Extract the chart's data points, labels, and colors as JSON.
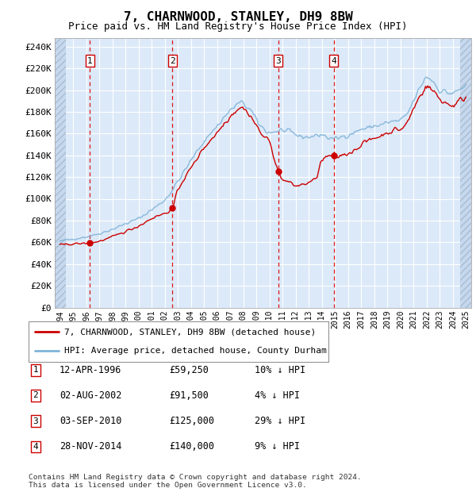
{
  "title": "7, CHARNWOOD, STANLEY, DH9 8BW",
  "subtitle": "Price paid vs. HM Land Registry's House Price Index (HPI)",
  "ylabel_ticks": [
    "£0",
    "£20K",
    "£40K",
    "£60K",
    "£80K",
    "£100K",
    "£120K",
    "£140K",
    "£160K",
    "£180K",
    "£200K",
    "£220K",
    "£240K"
  ],
  "ytick_values": [
    0,
    20000,
    40000,
    60000,
    80000,
    100000,
    120000,
    140000,
    160000,
    180000,
    200000,
    220000,
    240000
  ],
  "ylim": [
    0,
    248000
  ],
  "xlim_start": 1993.6,
  "xlim_end": 2025.4,
  "background_color": "#ffffff",
  "plot_bg_color": "#dce9f8",
  "grid_color": "#ffffff",
  "sale_dates": [
    1996.28,
    2002.58,
    2010.67,
    2014.91
  ],
  "sale_prices": [
    59250,
    91500,
    125000,
    140000
  ],
  "sale_labels": [
    "1",
    "2",
    "3",
    "4"
  ],
  "red_line_color": "#cc0000",
  "blue_line_color": "#7fb3d9",
  "marker_color": "#cc0000",
  "dashed_line_color": "#dd0000",
  "legend_entry1": "7, CHARNWOOD, STANLEY, DH9 8BW (detached house)",
  "legend_entry2": "HPI: Average price, detached house, County Durham",
  "table_entries": [
    {
      "label": "1",
      "date": "12-APR-1996",
      "price": "£59,250",
      "hpi": "10% ↓ HPI"
    },
    {
      "label": "2",
      "date": "02-AUG-2002",
      "price": "£91,500",
      "hpi": "4% ↓ HPI"
    },
    {
      "label": "3",
      "date": "03-SEP-2010",
      "price": "£125,000",
      "hpi": "29% ↓ HPI"
    },
    {
      "label": "4",
      "date": "28-NOV-2014",
      "price": "£140,000",
      "hpi": "9% ↓ HPI"
    }
  ],
  "footer_text": "Contains HM Land Registry data © Crown copyright and database right 2024.\nThis data is licensed under the Open Government Licence v3.0."
}
